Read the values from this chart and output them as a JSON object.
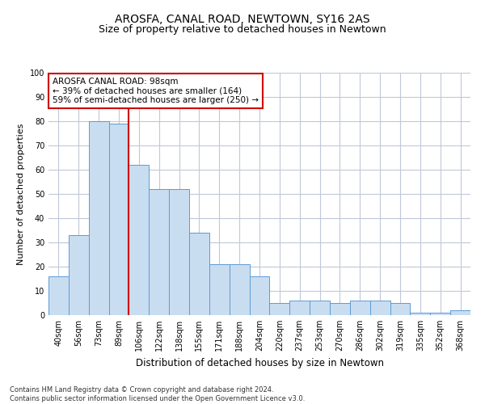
{
  "title1": "AROSFA, CANAL ROAD, NEWTOWN, SY16 2AS",
  "title2": "Size of property relative to detached houses in Newtown",
  "xlabel": "Distribution of detached houses by size in Newtown",
  "ylabel": "Number of detached properties",
  "categories": [
    "40sqm",
    "56sqm",
    "73sqm",
    "89sqm",
    "106sqm",
    "122sqm",
    "138sqm",
    "155sqm",
    "171sqm",
    "188sqm",
    "204sqm",
    "220sqm",
    "237sqm",
    "253sqm",
    "270sqm",
    "286sqm",
    "302sqm",
    "319sqm",
    "335sqm",
    "352sqm",
    "368sqm"
  ],
  "values": [
    16,
    33,
    80,
    79,
    62,
    52,
    52,
    34,
    21,
    21,
    16,
    5,
    6,
    6,
    5,
    6,
    6,
    5,
    1,
    1,
    2
  ],
  "bar_color": "#c9ddf0",
  "bar_edge_color": "#5b9bd5",
  "vline_x_index": 3,
  "vline_color": "#cc0000",
  "annotation_text": "AROSFA CANAL ROAD: 98sqm\n← 39% of detached houses are smaller (164)\n59% of semi-detached houses are larger (250) →",
  "annotation_box_color": "#ffffff",
  "annotation_box_edge": "#cc0000",
  "ylim": [
    0,
    100
  ],
  "yticks": [
    0,
    10,
    20,
    30,
    40,
    50,
    60,
    70,
    80,
    90,
    100
  ],
  "footer": "Contains HM Land Registry data © Crown copyright and database right 2024.\nContains public sector information licensed under the Open Government Licence v3.0.",
  "bg_color": "#ffffff",
  "grid_color": "#c0c8d8",
  "title1_fontsize": 10,
  "title2_fontsize": 9,
  "axis_label_fontsize": 8,
  "tick_fontsize": 7,
  "annotation_fontsize": 7.5,
  "footer_fontsize": 6
}
